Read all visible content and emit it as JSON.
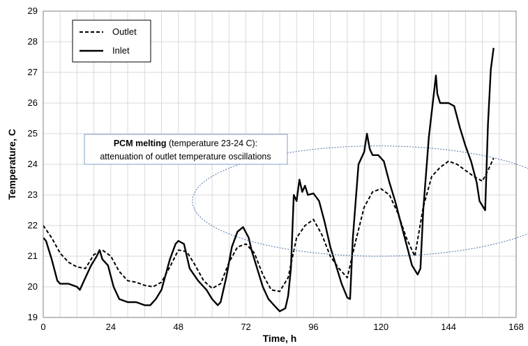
{
  "chart_data": {
    "type": "line",
    "xlabel": "Time, h",
    "ylabel": "Temperature, C",
    "xlim": [
      0,
      168
    ],
    "ylim": [
      19,
      29
    ],
    "x_ticks": [
      "0",
      "24",
      "48",
      "72",
      "96",
      "120",
      "144",
      "168"
    ],
    "y_ticks": [
      "19",
      "20",
      "21",
      "22",
      "23",
      "24",
      "25",
      "26",
      "27",
      "28",
      "29"
    ],
    "grid": true,
    "legend_position": "top-left",
    "annotation": {
      "bold": "PCM melting",
      "rest_line1": " (temperature 23-24 C):",
      "line2": "attenuation of outlet temperature oscillations"
    },
    "series": [
      {
        "name": "Outlet",
        "style": "dashed",
        "x": [
          0,
          3,
          6,
          9,
          12,
          15,
          18,
          21,
          24,
          27,
          30,
          33,
          36,
          39,
          42,
          45,
          48,
          51,
          54,
          57,
          60,
          63,
          66,
          69,
          72,
          75,
          78,
          81,
          84,
          87,
          90,
          93,
          96,
          99,
          102,
          105,
          108,
          111,
          114,
          117,
          120,
          123,
          126,
          129,
          132,
          135,
          138,
          141,
          144,
          147,
          150,
          153,
          156,
          158,
          160
        ],
        "y": [
          22.0,
          21.6,
          21.1,
          20.8,
          20.65,
          20.6,
          21.05,
          21.2,
          21.0,
          20.5,
          20.2,
          20.15,
          20.05,
          20.0,
          20.15,
          20.65,
          21.2,
          21.15,
          20.7,
          20.2,
          19.95,
          20.1,
          20.8,
          21.3,
          21.4,
          21.1,
          20.4,
          19.9,
          19.85,
          20.3,
          21.6,
          22.0,
          22.2,
          21.7,
          21.0,
          20.6,
          20.3,
          21.5,
          22.6,
          23.1,
          23.2,
          23.0,
          22.4,
          21.6,
          21.0,
          22.6,
          23.6,
          23.9,
          24.1,
          24.0,
          23.8,
          23.6,
          23.45,
          23.8,
          24.2
        ]
      },
      {
        "name": "Inlet",
        "style": "solid",
        "x": [
          0,
          1,
          3,
          5,
          6,
          7,
          9,
          12,
          13,
          15,
          17,
          19,
          20,
          21,
          23,
          25,
          27,
          30,
          33,
          36,
          38,
          40,
          42,
          45,
          47,
          48,
          50,
          52,
          55,
          58,
          60,
          62,
          63,
          65,
          67,
          69,
          71,
          73,
          74,
          76,
          78,
          80,
          82,
          84,
          86,
          87,
          88,
          89,
          90,
          91,
          92,
          93,
          94,
          96,
          98,
          100,
          102,
          104,
          106,
          108,
          109,
          110,
          112,
          114,
          115,
          116,
          117,
          119,
          121,
          123,
          125,
          127,
          129,
          131,
          133,
          134,
          135,
          137,
          139,
          139.5,
          140,
          141,
          142,
          144,
          146,
          148,
          150,
          152,
          154,
          155,
          157,
          158,
          159,
          160
        ],
        "y": [
          21.6,
          21.5,
          20.9,
          20.2,
          20.1,
          20.1,
          20.1,
          20.0,
          19.9,
          20.3,
          20.7,
          21.0,
          21.2,
          20.9,
          20.7,
          20.0,
          19.6,
          19.5,
          19.5,
          19.4,
          19.4,
          19.6,
          19.9,
          20.9,
          21.4,
          21.5,
          21.4,
          20.6,
          20.2,
          19.9,
          19.6,
          19.4,
          19.5,
          20.3,
          21.3,
          21.8,
          21.95,
          21.6,
          21.2,
          20.6,
          20.0,
          19.6,
          19.4,
          19.2,
          19.3,
          19.7,
          20.6,
          23.0,
          22.8,
          23.5,
          23.1,
          23.3,
          23.0,
          23.05,
          22.8,
          22.1,
          21.3,
          20.7,
          20.1,
          19.65,
          19.6,
          21.6,
          24.0,
          24.4,
          25.0,
          24.5,
          24.3,
          24.3,
          24.1,
          23.4,
          22.8,
          22.1,
          21.4,
          20.7,
          20.4,
          20.6,
          22.5,
          24.9,
          26.5,
          26.9,
          26.3,
          26.0,
          26.0,
          26.0,
          25.9,
          25.2,
          24.6,
          24.1,
          23.4,
          22.8,
          22.5,
          25.3,
          27.1,
          27.8
        ]
      }
    ]
  }
}
